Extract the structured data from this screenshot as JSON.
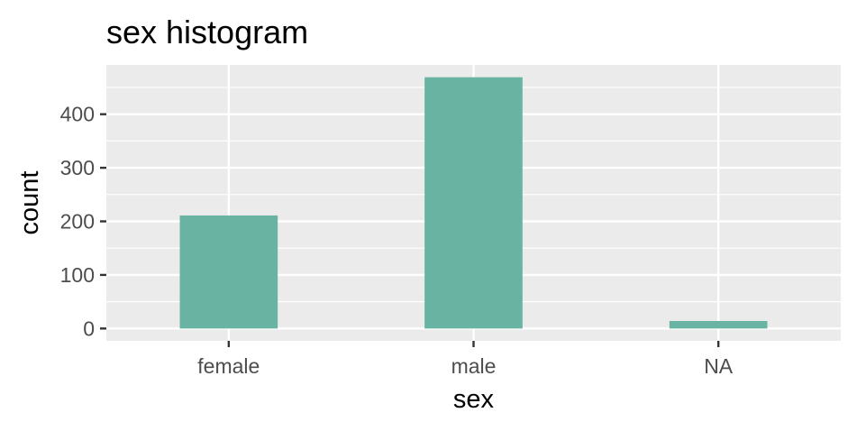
{
  "chart_data": {
    "type": "bar",
    "title": "sex histogram",
    "xlabel": "sex",
    "ylabel": "count",
    "categories": [
      "female",
      "male",
      "NA"
    ],
    "values": [
      211,
      469,
      14
    ],
    "yticks": [
      0,
      100,
      200,
      300,
      400
    ],
    "ylim": [
      -23,
      492
    ],
    "grid": true,
    "legend": "none",
    "colors": {
      "bar": "#69b3a2",
      "panel": "#ebebeb",
      "grid": "#ffffff",
      "tick_label": "#4d4d4d",
      "text": "#000000"
    }
  }
}
